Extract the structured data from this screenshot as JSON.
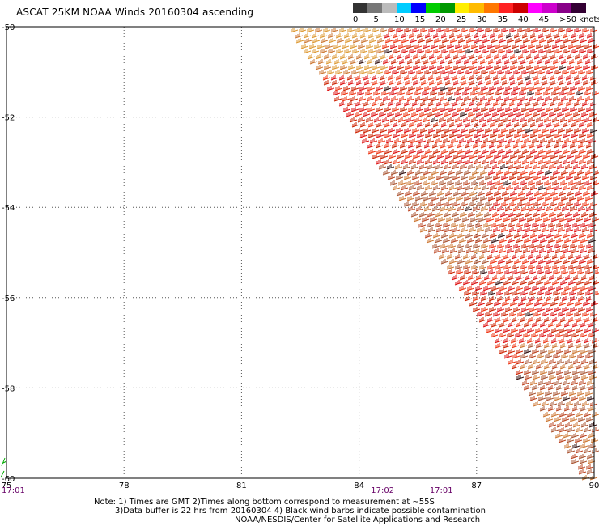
{
  "header": {
    "title": "ASCAT 25KM NOAA Winds 20160304 ascending"
  },
  "legend": {
    "colors": [
      "#333333",
      "#777777",
      "#bbbbbb",
      "#00ccff",
      "#0000ff",
      "#00cc00",
      "#009900",
      "#ffee00",
      "#ffbb00",
      "#ff7700",
      "#ff2222",
      "#cc0000",
      "#ff00ff",
      "#cc00cc",
      "#880088",
      "#330033"
    ],
    "labels": [
      "0",
      "5",
      "10",
      "15",
      "20",
      "25",
      "30",
      "35",
      "40",
      "45",
      ">50 knots"
    ]
  },
  "map": {
    "lat_labels": [
      "-50",
      "-52",
      "-54",
      "-56",
      "-58",
      "-60"
    ],
    "lon_labels": [
      "75",
      "78",
      "81",
      "84",
      "87",
      "90"
    ],
    "time_labels": [
      {
        "text": "17:01",
        "lon": 75
      },
      {
        "text": "17:02",
        "lon": 84.6
      },
      {
        "text": "17:01",
        "lon": 86.1
      }
    ],
    "barb_colors": [
      "#dd1111",
      "#cc2200",
      "#ee3311",
      "#bb4422",
      "#aa5533",
      "#cc7733",
      "#dd9933",
      "#331111"
    ]
  },
  "notes": {
    "line1": "Note: 1) Times are GMT 2)Times along bottom correspond to measurement at ~55S",
    "line2": "3)Data buffer is 22 hrs from 20160304 4) Black wind barbs indicate possible contamination",
    "line3": "NOAA/NESDIS/Center for Satellite Applications and Research"
  }
}
